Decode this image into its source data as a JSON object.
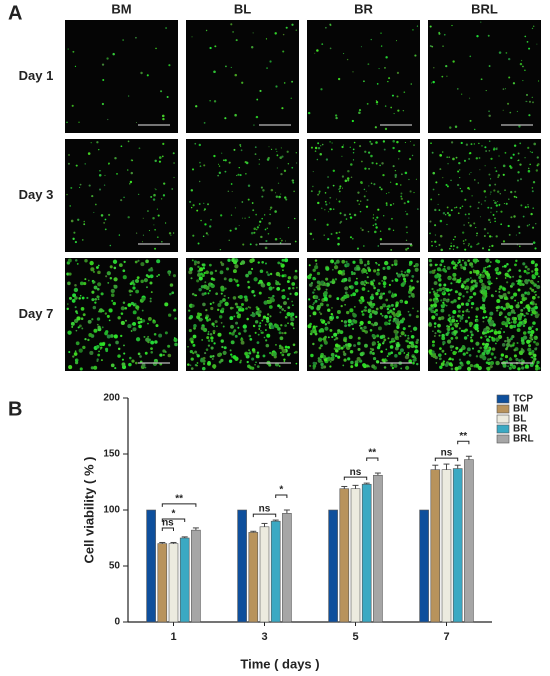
{
  "panel_a": {
    "label": "A",
    "columns": [
      "BM",
      "BL",
      "BR",
      "BRL"
    ],
    "rows": [
      "Day 1",
      "Day 3",
      "Day 7"
    ]
  },
  "chart_data": {
    "type": "bar",
    "panel_label": "B",
    "x_label": "Time ( days )",
    "y_label": "Cell viability ( % )",
    "categories": [
      "1",
      "3",
      "5",
      "7"
    ],
    "series": [
      {
        "name": "TCP",
        "color": "#0e4f9c",
        "values": [
          100,
          100,
          100,
          100
        ],
        "errors": [
          0,
          0,
          0,
          0
        ]
      },
      {
        "name": "BM",
        "color": "#b8935c",
        "values": [
          70,
          80,
          119,
          136
        ],
        "errors": [
          1,
          1,
          2,
          4
        ]
      },
      {
        "name": "BL",
        "color": "#ecebdf",
        "values": [
          70,
          85,
          119,
          136
        ],
        "errors": [
          1,
          3,
          3,
          5
        ]
      },
      {
        "name": "BR",
        "color": "#3ba9c3",
        "values": [
          75,
          90,
          123,
          137
        ],
        "errors": [
          1,
          1,
          1,
          3
        ]
      },
      {
        "name": "BRL",
        "color": "#a6a6a6",
        "values": [
          82,
          97,
          131,
          145
        ],
        "errors": [
          2,
          3,
          2,
          3
        ]
      }
    ],
    "annotations": [
      {
        "label": "ns",
        "category": 0,
        "series": [
          1,
          2
        ]
      },
      {
        "label": "*",
        "category": 0,
        "series": [
          1,
          3
        ]
      },
      {
        "label": "**",
        "category": 0,
        "series": [
          1,
          4
        ]
      },
      {
        "label": "ns",
        "category": 1,
        "series": [
          1,
          3
        ]
      },
      {
        "label": "*",
        "category": 1,
        "series": [
          3,
          4
        ]
      },
      {
        "label": "ns",
        "category": 2,
        "series": [
          1,
          3
        ]
      },
      {
        "label": "**",
        "category": 2,
        "series": [
          3,
          4
        ]
      },
      {
        "label": "ns",
        "category": 3,
        "series": [
          1,
          3
        ]
      },
      {
        "label": "**",
        "category": 3,
        "series": [
          3,
          4
        ]
      }
    ],
    "ylim": [
      0,
      200
    ],
    "yticks": [
      0,
      50,
      100,
      150,
      200
    ],
    "legend": "right"
  }
}
